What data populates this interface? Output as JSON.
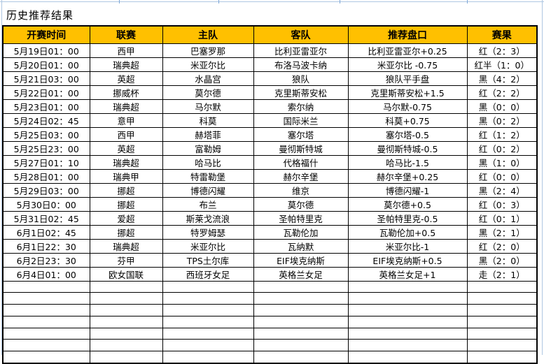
{
  "title": "历史推荐结果",
  "colors": {
    "header_bg": "#FFC000",
    "result_red": "#FF0000",
    "result_black": "#000000",
    "result_cyan": "#00B0F0",
    "grid_line": "#AEC7E2",
    "table_border": "#000000"
  },
  "table": {
    "headers": [
      "开赛时间",
      "联赛",
      "主队",
      "客队",
      "推荐盘口",
      "赛果"
    ],
    "empty_row_count": 7,
    "rows": [
      {
        "time": "5月19日01：00",
        "league": "西甲",
        "home": "巴塞罗那",
        "away": "比利亚雷亚尔",
        "handicap": "比利亚雷亚尔+0.25",
        "result": "红（2：3）",
        "result_color": "red"
      },
      {
        "time": "5月20日01：00",
        "league": "瑞典超",
        "home": "米亚尔比",
        "away": "布洛马波卡纳",
        "handicap": "米亚尔比 -0.75",
        "result": "红半（1：0）",
        "result_color": "red"
      },
      {
        "time": "5月21日03：00",
        "league": "英超",
        "home": "水晶宫",
        "away": "狼队",
        "handicap": "狼队平手盘",
        "result": "黑（4：2）",
        "result_color": "black"
      },
      {
        "time": "5月22日01：00",
        "league": "挪威杯",
        "home": "莫尔德",
        "away": "克里斯蒂安松",
        "handicap": "克里斯蒂安松+1.5",
        "result": "红（2：2）",
        "result_color": "red"
      },
      {
        "time": "5月23日01：00",
        "league": "瑞典超",
        "home": "马尔默",
        "away": "索尔纳",
        "handicap": "马尔默-0.75",
        "result": "黑（0：0）",
        "result_color": "black"
      },
      {
        "time": "5月24日02：45",
        "league": "意甲",
        "home": "科莫",
        "away": "国际米兰",
        "handicap": "科莫+0.75",
        "result": "黑（0：2）",
        "result_color": "black"
      },
      {
        "time": "5月25日03：00",
        "league": "西甲",
        "home": "赫塔菲",
        "away": "塞尔塔",
        "handicap": "塞尔塔-0.5",
        "result": "红（1：2）",
        "result_color": "red"
      },
      {
        "time": "5月25日23：00",
        "league": "英超",
        "home": "富勒姆",
        "away": "曼彻斯特城",
        "handicap": "曼彻斯特城-0.5",
        "result": "红（0：2）",
        "result_color": "red"
      },
      {
        "time": "5月27日01：10",
        "league": "瑞典超",
        "home": "哈马比",
        "away": "代格福什",
        "handicap": "哈马比-1.5",
        "result": "黑（1：0）",
        "result_color": "black"
      },
      {
        "time": "5月28日01：00",
        "league": "瑞典甲",
        "home": "特雷勒堡",
        "away": "赫尔辛堡",
        "handicap": "赫尔辛堡+0.25",
        "result": "红（0：0）",
        "result_color": "red"
      },
      {
        "time": "5月29日03：00",
        "league": "挪超",
        "home": "博德闪耀",
        "away": "维京",
        "handicap": "博德闪耀-1",
        "result": "黑（2：4）",
        "result_color": "black"
      },
      {
        "time": "5月30日0：00",
        "league": "挪超",
        "home": "布兰",
        "away": "莫尔德",
        "handicap": "莫尔德+0.5",
        "result": "红（0：3）",
        "result_color": "red"
      },
      {
        "time": "5月31日02：45",
        "league": "爱超",
        "home": "斯莱戈流浪",
        "away": "圣帕特里克",
        "handicap": "圣帕特里克-0.5",
        "result": "红（0：1）",
        "result_color": "red"
      },
      {
        "time": "6月1日02：45",
        "league": "挪超",
        "home": "特罗姆瑟",
        "away": "瓦勒伦加",
        "handicap": "瓦勒伦加+0.5",
        "result": "黑（2：1）",
        "result_color": "black"
      },
      {
        "time": "6月1日22：30",
        "league": "瑞典超",
        "home": "米亚尔比",
        "away": "瓦纳默",
        "handicap": "米亚尔比-1",
        "result": "红（2：0）",
        "result_color": "red"
      },
      {
        "time": "6月2日23：30",
        "league": "芬甲",
        "home": "TPS土尔库",
        "away": "EIF埃克纳斯",
        "handicap": "EIF埃克纳斯+0.5",
        "result": "黑（2：0）",
        "result_color": "black"
      },
      {
        "time": "6月4日01：00",
        "league": "欧女国联",
        "home": "西班牙女足",
        "away": "英格兰女足",
        "handicap": "英格兰女足+1",
        "result": "走（2：1）",
        "result_color": "cyan"
      }
    ]
  }
}
